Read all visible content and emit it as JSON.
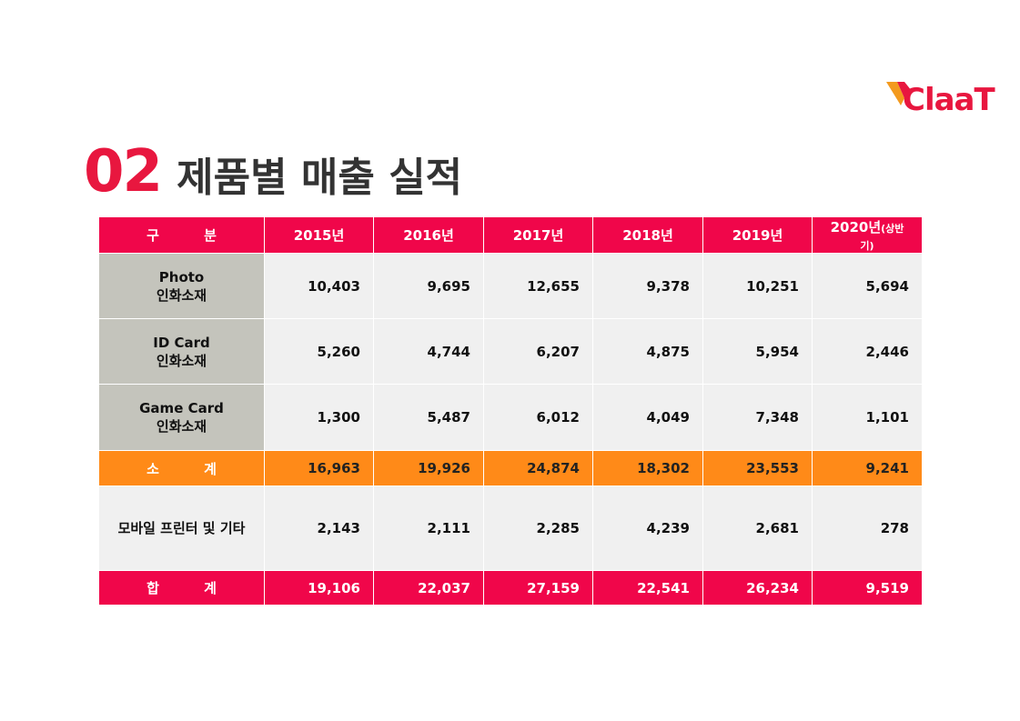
{
  "logo": {
    "text": "ClaaT"
  },
  "title": {
    "number": "02",
    "text": "제품별 매출 실적"
  },
  "table": {
    "header_label": "구 분",
    "years": [
      "2015년",
      "2016년",
      "2017년",
      "2018년",
      "2019년"
    ],
    "last_year": "2020년",
    "last_year_note": "(상반기)",
    "rows": [
      {
        "name1": "Photo",
        "name2": "인화소재",
        "values": [
          "10,403",
          "9,695",
          "12,655",
          "9,378",
          "10,251",
          "5,694"
        ]
      },
      {
        "name1": "ID Card",
        "name2": "인화소재",
        "values": [
          "5,260",
          "4,744",
          "6,207",
          "4,875",
          "5,954",
          "2,446"
        ]
      },
      {
        "name1": "Game Card",
        "name2": "인화소재",
        "values": [
          "1,300",
          "5,487",
          "6,012",
          "4,049",
          "7,348",
          "1,101"
        ]
      }
    ],
    "subtotal": {
      "label": "소 계",
      "values": [
        "16,963",
        "19,926",
        "24,874",
        "18,302",
        "23,553",
        "9,241"
      ]
    },
    "mobile": {
      "label": "모바일 프린터 및 기타",
      "values": [
        "2,143",
        "2,111",
        "2,285",
        "4,239",
        "2,681",
        "278"
      ]
    },
    "total": {
      "label": "합 계",
      "values": [
        "19,106",
        "22,037",
        "27,159",
        "22,541",
        "26,234",
        "9,519"
      ]
    }
  },
  "colors": {
    "accent": "#f0064a",
    "subtotal": "#ff8a18",
    "label_bg": "#c4c4bc",
    "cell_bg": "#f0f0f0"
  }
}
